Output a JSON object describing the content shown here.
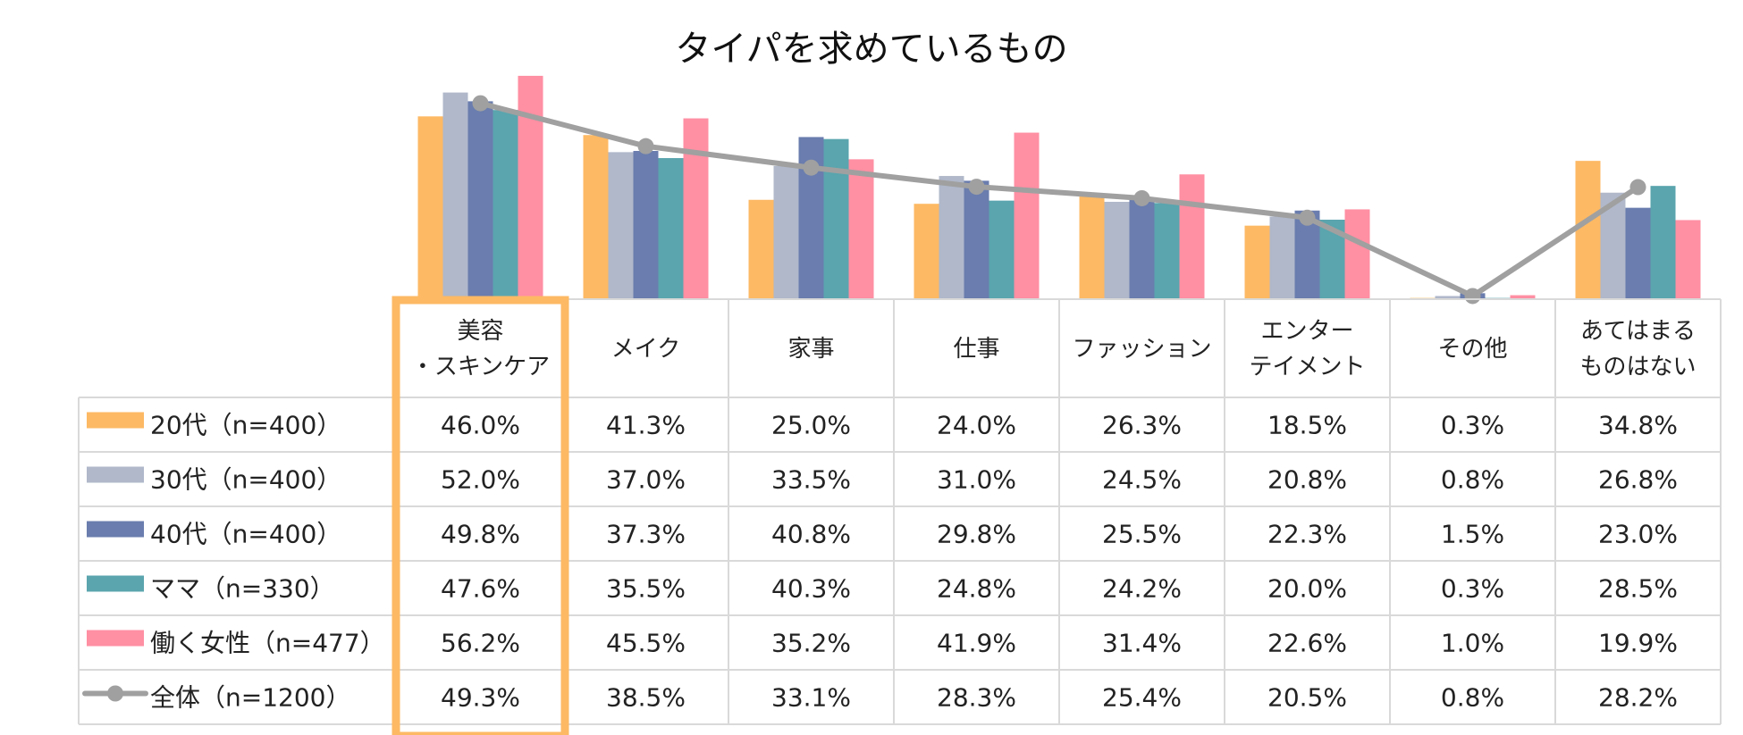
{
  "chart_data": {
    "type": "bar",
    "title": "タイパを求めているもの",
    "categories": [
      [
        "美容",
        "・スキンケア"
      ],
      [
        "メイク"
      ],
      [
        "家事"
      ],
      [
        "仕事"
      ],
      [
        "ファッション"
      ],
      [
        "エンター",
        "テイメント"
      ],
      [
        "その他"
      ],
      [
        "あてはまる",
        "ものはない"
      ]
    ],
    "highlight_category_index": 0,
    "series": [
      {
        "name": "20代（n=400）",
        "kind": "bar",
        "color": "#FDB964",
        "values": [
          46.0,
          41.3,
          25.0,
          24.0,
          26.3,
          18.5,
          0.3,
          34.8
        ]
      },
      {
        "name": "30代（n=400）",
        "kind": "bar",
        "color": "#B0B8CA",
        "values": [
          52.0,
          37.0,
          33.5,
          31.0,
          24.5,
          20.8,
          0.8,
          26.8
        ]
      },
      {
        "name": "40代（n=400）",
        "kind": "bar",
        "color": "#6A7DAE",
        "values": [
          49.8,
          37.3,
          40.8,
          29.8,
          25.5,
          22.3,
          1.5,
          23.0
        ]
      },
      {
        "name": "ママ（n=330）",
        "kind": "bar",
        "color": "#5AA5AE",
        "values": [
          47.6,
          35.5,
          40.3,
          24.8,
          24.2,
          20.0,
          0.3,
          28.5
        ]
      },
      {
        "name": "働く女性（n=477）",
        "kind": "bar",
        "color": "#FF8FA3",
        "values": [
          56.2,
          45.5,
          35.2,
          41.9,
          31.4,
          22.6,
          1.0,
          19.9
        ]
      },
      {
        "name": "全体（n=1200）",
        "kind": "line",
        "color": "#A0A0A0",
        "values": [
          49.3,
          38.5,
          33.1,
          28.3,
          25.4,
          20.5,
          0.8,
          28.2
        ]
      }
    ],
    "value_suffix": "%",
    "ylim": [
      0,
      60
    ],
    "legend": "table-left",
    "grid": false
  }
}
